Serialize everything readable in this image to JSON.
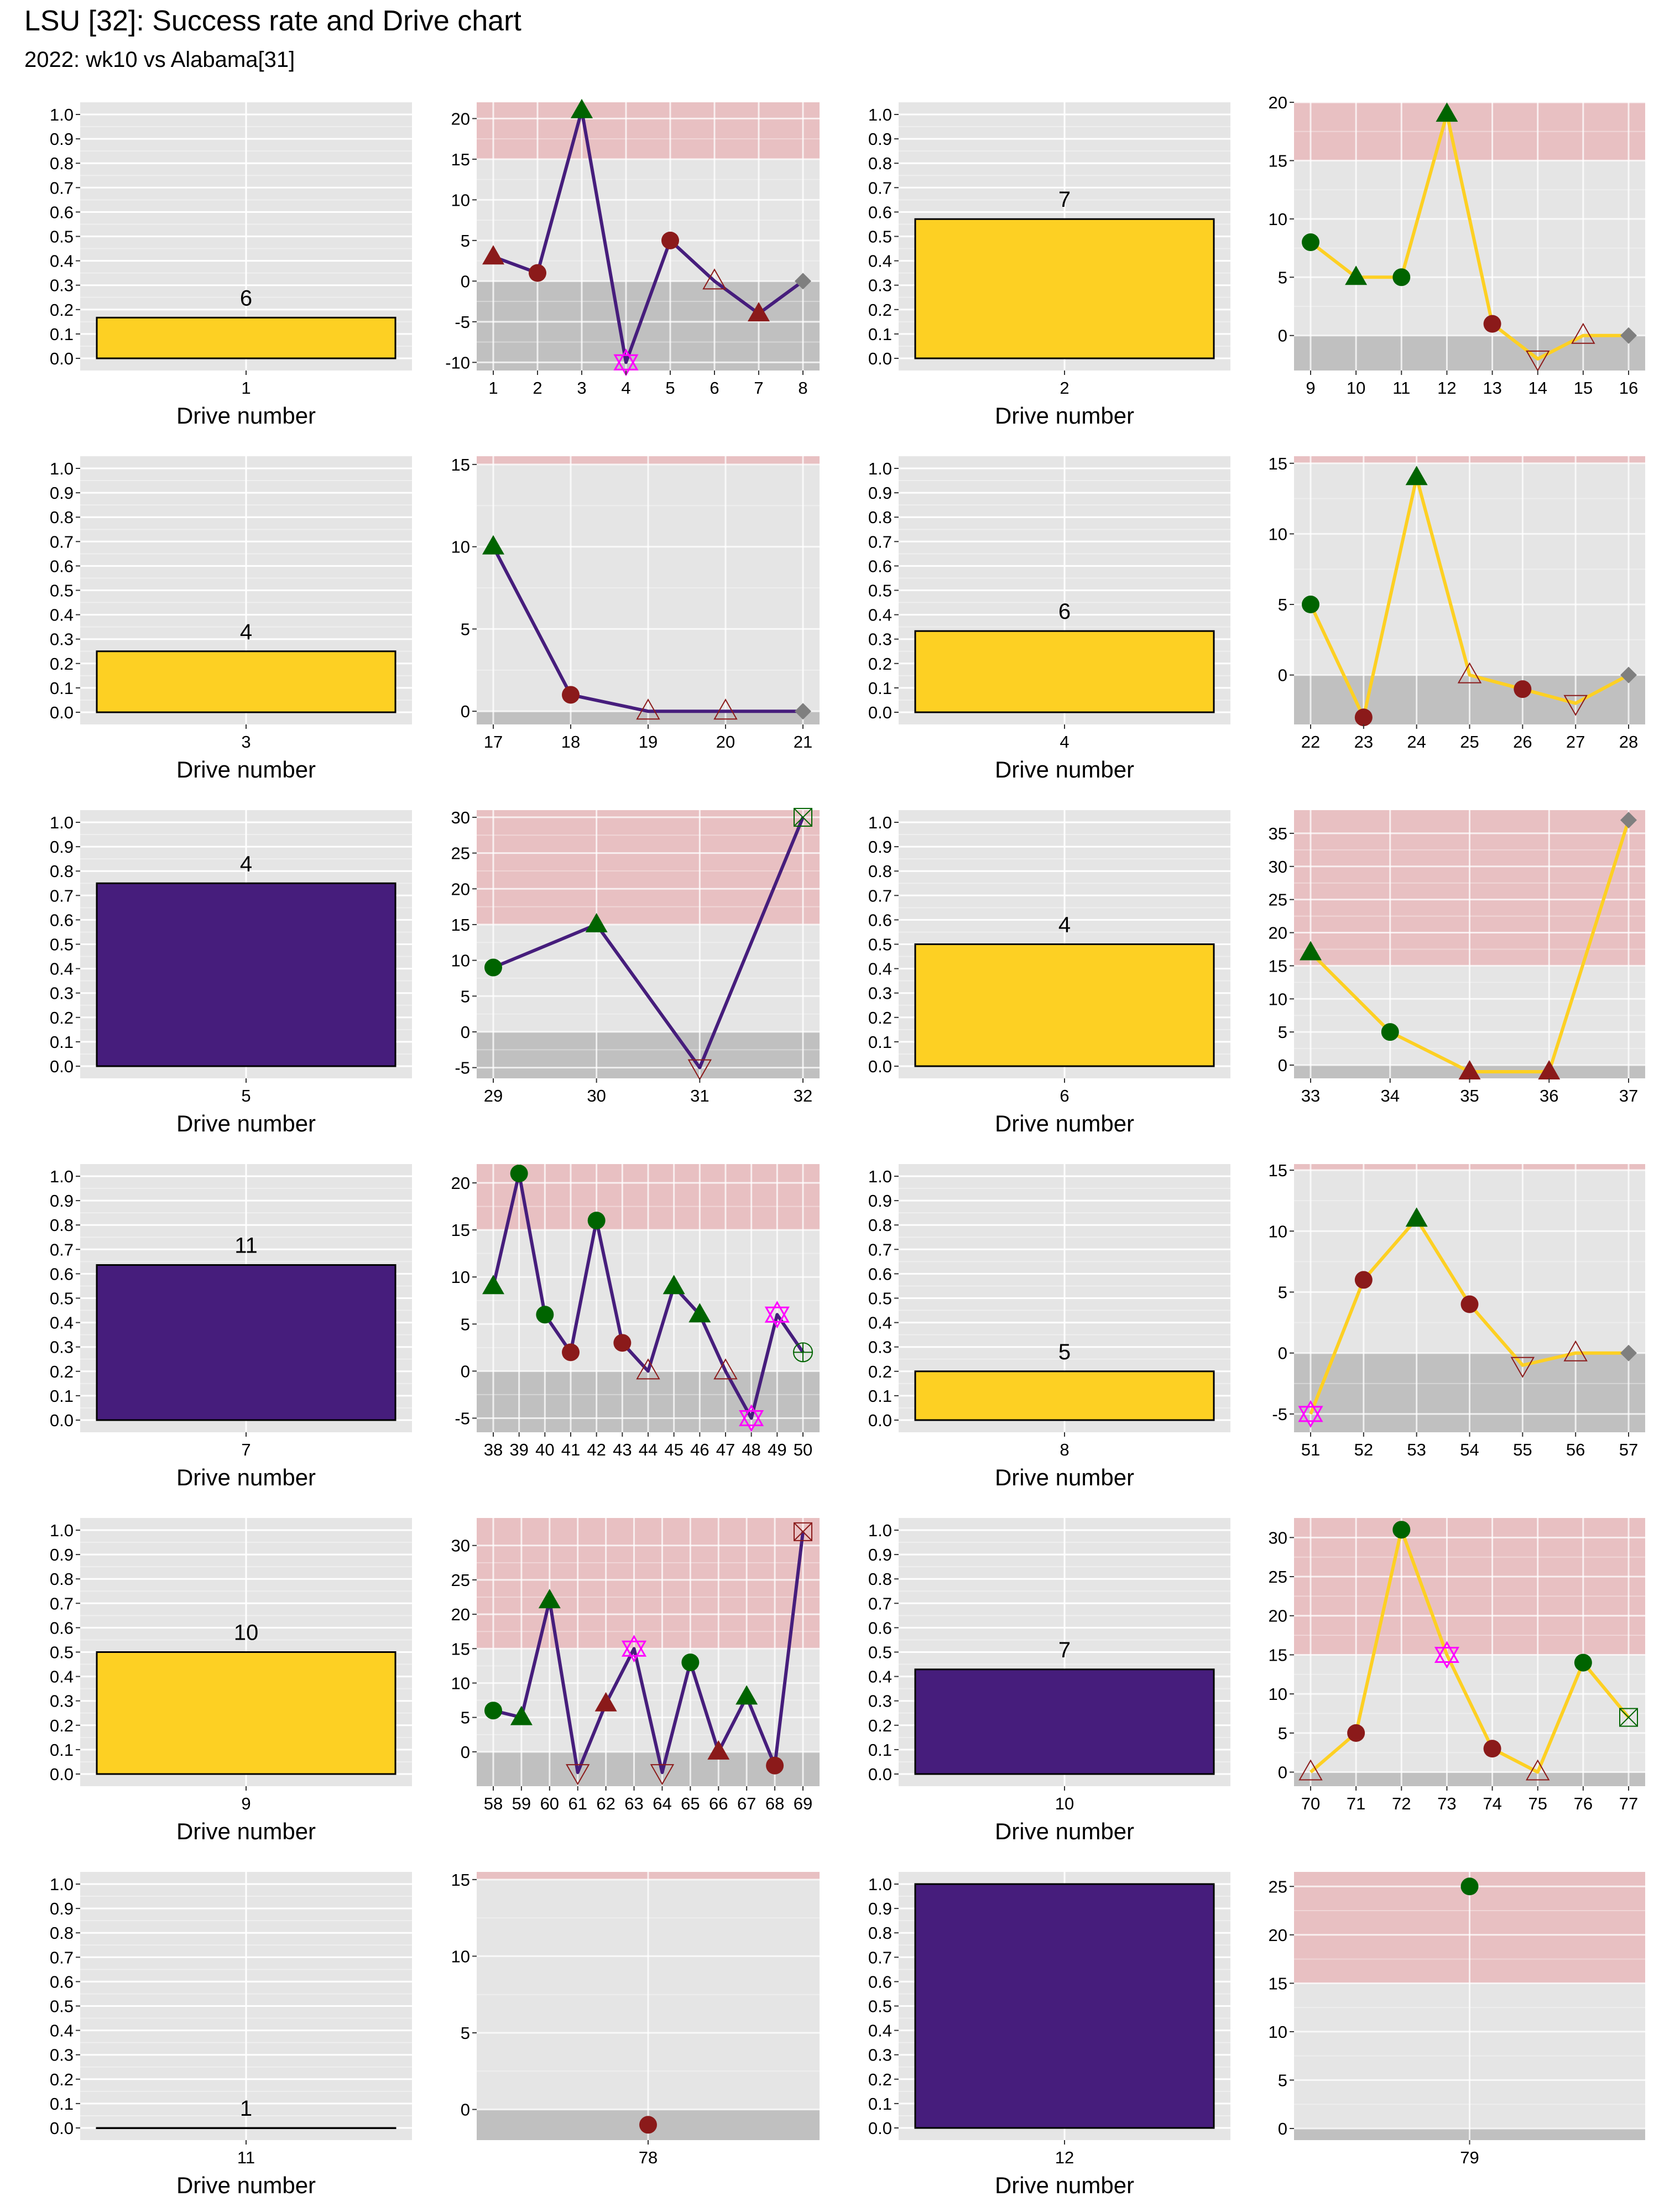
{
  "header": {
    "title": "LSU [32]: Success rate and Drive chart",
    "subtitle": "2022: wk10 vs Alabama[31]"
  },
  "colors": {
    "lsu_purple": "#461D7C",
    "lsu_gold": "#FDD023",
    "success_green": "#006400",
    "fail_red": "#8B1A1A",
    "panel_bg": "#E5E5E5",
    "explosive_band": "#E8C0C2",
    "negative_band": "#C0C0C0",
    "turnover_magenta": "#FF00FF",
    "end_gray": "#7F7F7F"
  },
  "chart_data": [
    {
      "type": "bar",
      "drives": [
        {
          "drive": 1,
          "plays": 6,
          "success_rate": 0.167,
          "color": "gold"
        },
        {
          "drive": 2,
          "plays": 7,
          "success_rate": 0.571,
          "color": "gold"
        },
        {
          "drive": 3,
          "plays": 4,
          "success_rate": 0.25,
          "color": "gold"
        },
        {
          "drive": 4,
          "plays": 6,
          "success_rate": 0.333,
          "color": "gold"
        },
        {
          "drive": 5,
          "plays": 4,
          "success_rate": 0.75,
          "color": "purple"
        },
        {
          "drive": 6,
          "plays": 4,
          "success_rate": 0.5,
          "color": "gold"
        },
        {
          "drive": 7,
          "plays": 11,
          "success_rate": 0.636,
          "color": "purple"
        },
        {
          "drive": 8,
          "plays": 5,
          "success_rate": 0.2,
          "color": "gold"
        },
        {
          "drive": 9,
          "plays": 10,
          "success_rate": 0.5,
          "color": "gold"
        },
        {
          "drive": 10,
          "plays": 7,
          "success_rate": 0.429,
          "color": "purple"
        },
        {
          "drive": 11,
          "plays": 1,
          "success_rate": 0.0,
          "color": "gold"
        },
        {
          "drive": 12,
          "plays": null,
          "success_rate": 1.0,
          "color": "purple"
        }
      ],
      "ylim": [
        0,
        1
      ],
      "yticks": [
        "0.0",
        "0.1",
        "0.2",
        "0.3",
        "0.4",
        "0.5",
        "0.6",
        "0.7",
        "0.8",
        "0.9",
        "1.0"
      ],
      "xlabel": "Drive number"
    },
    {
      "type": "line",
      "drives": [
        {
          "drive": 1,
          "line_color": "purple",
          "ylim": [
            -11,
            22
          ],
          "yticks": [
            "-10",
            "-5",
            "0",
            "5",
            "10",
            "15",
            "20"
          ],
          "points": [
            {
              "x": 1,
              "y": 3,
              "shape": "triangle",
              "color": "red"
            },
            {
              "x": 2,
              "y": 1,
              "shape": "circle",
              "color": "red"
            },
            {
              "x": 3,
              "y": 21,
              "shape": "triangle",
              "color": "green"
            },
            {
              "x": 4,
              "y": -10,
              "shape": "star",
              "color": "magenta"
            },
            {
              "x": 5,
              "y": 5,
              "shape": "circle",
              "color": "red"
            },
            {
              "x": 6,
              "y": 0,
              "shape": "triangle-open",
              "color": "red"
            },
            {
              "x": 7,
              "y": -4,
              "shape": "triangle",
              "color": "red"
            },
            {
              "x": 8,
              "y": 0,
              "shape": "diamond",
              "color": "gray"
            }
          ]
        },
        {
          "drive": 2,
          "line_color": "gold",
          "ylim": [
            -3,
            20
          ],
          "yticks": [
            "0",
            "5",
            "10",
            "15",
            "20"
          ],
          "points": [
            {
              "x": 9,
              "y": 8,
              "shape": "circle",
              "color": "green"
            },
            {
              "x": 10,
              "y": 5,
              "shape": "triangle",
              "color": "green"
            },
            {
              "x": 11,
              "y": 5,
              "shape": "circle",
              "color": "green"
            },
            {
              "x": 12,
              "y": 19,
              "shape": "triangle",
              "color": "green"
            },
            {
              "x": 13,
              "y": 1,
              "shape": "circle",
              "color": "red"
            },
            {
              "x": 14,
              "y": -2,
              "shape": "tri-down-open",
              "color": "red"
            },
            {
              "x": 15,
              "y": 0,
              "shape": "triangle-open",
              "color": "red"
            },
            {
              "x": 16,
              "y": 0,
              "shape": "diamond",
              "color": "gray"
            }
          ]
        },
        {
          "drive": 3,
          "line_color": "purple",
          "ylim": [
            -0.8,
            15.5
          ],
          "yticks": [
            "0",
            "5",
            "10",
            "15"
          ],
          "points": [
            {
              "x": 17,
              "y": 10,
              "shape": "triangle",
              "color": "green"
            },
            {
              "x": 18,
              "y": 1,
              "shape": "circle",
              "color": "red"
            },
            {
              "x": 19,
              "y": 0,
              "shape": "triangle-open",
              "color": "red"
            },
            {
              "x": 20,
              "y": 0,
              "shape": "triangle-open",
              "color": "red"
            },
            {
              "x": 21,
              "y": 0,
              "shape": "diamond",
              "color": "gray"
            }
          ]
        },
        {
          "drive": 4,
          "line_color": "gold",
          "ylim": [
            -3.5,
            15.5
          ],
          "yticks": [
            "0",
            "5",
            "10",
            "15"
          ],
          "points": [
            {
              "x": 22,
              "y": 5,
              "shape": "circle",
              "color": "green"
            },
            {
              "x": 23,
              "y": -3,
              "shape": "circle",
              "color": "red"
            },
            {
              "x": 24,
              "y": 14,
              "shape": "triangle",
              "color": "green"
            },
            {
              "x": 25,
              "y": 0,
              "shape": "triangle-open",
              "color": "red"
            },
            {
              "x": 26,
              "y": -1,
              "shape": "circle",
              "color": "red"
            },
            {
              "x": 27,
              "y": -2,
              "shape": "tri-down-open",
              "color": "red"
            },
            {
              "x": 28,
              "y": 0,
              "shape": "diamond",
              "color": "gray"
            }
          ]
        },
        {
          "drive": 5,
          "line_color": "purple",
          "ylim": [
            -6.5,
            31
          ],
          "yticks": [
            "-5",
            "0",
            "5",
            "10",
            "15",
            "20",
            "25",
            "30"
          ],
          "points": [
            {
              "x": 29,
              "y": 9,
              "shape": "circle",
              "color": "green"
            },
            {
              "x": 30,
              "y": 15,
              "shape": "triangle",
              "color": "green"
            },
            {
              "x": 31,
              "y": -5,
              "shape": "tri-down-open",
              "color": "red"
            },
            {
              "x": 32,
              "y": 30,
              "shape": "square-x",
              "color": "green"
            }
          ]
        },
        {
          "drive": 6,
          "line_color": "gold",
          "ylim": [
            -2,
            38.5
          ],
          "yticks": [
            "0",
            "5",
            "10",
            "15",
            "20",
            "25",
            "30",
            "35"
          ],
          "points": [
            {
              "x": 33,
              "y": 17,
              "shape": "triangle",
              "color": "green"
            },
            {
              "x": 34,
              "y": 5,
              "shape": "circle",
              "color": "green"
            },
            {
              "x": 35,
              "y": -1,
              "shape": "triangle",
              "color": "red"
            },
            {
              "x": 36,
              "y": -1,
              "shape": "triangle",
              "color": "red"
            },
            {
              "x": 37,
              "y": 37,
              "shape": "diamond",
              "color": "gray"
            }
          ]
        },
        {
          "drive": 7,
          "line_color": "purple",
          "ylim": [
            -6.5,
            22
          ],
          "yticks": [
            "-5",
            "0",
            "5",
            "10",
            "15",
            "20"
          ],
          "points": [
            {
              "x": 38,
              "y": 9,
              "shape": "triangle",
              "color": "green"
            },
            {
              "x": 39,
              "y": 21,
              "shape": "circle",
              "color": "green"
            },
            {
              "x": 40,
              "y": 6,
              "shape": "circle",
              "color": "green"
            },
            {
              "x": 41,
              "y": 2,
              "shape": "circle",
              "color": "red"
            },
            {
              "x": 42,
              "y": 16,
              "shape": "circle",
              "color": "green"
            },
            {
              "x": 43,
              "y": 3,
              "shape": "circle",
              "color": "red"
            },
            {
              "x": 44,
              "y": 0,
              "shape": "triangle-open",
              "color": "red"
            },
            {
              "x": 45,
              "y": 9,
              "shape": "triangle",
              "color": "green"
            },
            {
              "x": 46,
              "y": 6,
              "shape": "triangle",
              "color": "green"
            },
            {
              "x": 47,
              "y": 0,
              "shape": "triangle-open",
              "color": "red"
            },
            {
              "x": 48,
              "y": -5,
              "shape": "star",
              "color": "magenta"
            },
            {
              "x": 49,
              "y": 6,
              "shape": "star",
              "color": "magenta"
            },
            {
              "x": 50,
              "y": 2,
              "shape": "circle-plus",
              "color": "green"
            }
          ]
        },
        {
          "drive": 8,
          "line_color": "gold",
          "ylim": [
            -6.5,
            15.5
          ],
          "yticks": [
            "-5",
            "0",
            "5",
            "10",
            "15"
          ],
          "points": [
            {
              "x": 51,
              "y": -5,
              "shape": "star",
              "color": "magenta"
            },
            {
              "x": 52,
              "y": 6,
              "shape": "circle",
              "color": "red"
            },
            {
              "x": 53,
              "y": 11,
              "shape": "triangle",
              "color": "green"
            },
            {
              "x": 54,
              "y": 4,
              "shape": "circle",
              "color": "red"
            },
            {
              "x": 55,
              "y": -1,
              "shape": "tri-down-open",
              "color": "red"
            },
            {
              "x": 56,
              "y": 0,
              "shape": "triangle-open",
              "color": "red"
            },
            {
              "x": 57,
              "y": 0,
              "shape": "diamond",
              "color": "gray"
            }
          ]
        },
        {
          "drive": 9,
          "line_color": "purple",
          "ylim": [
            -5,
            34
          ],
          "yticks": [
            "0",
            "5",
            "10",
            "15",
            "20",
            "25",
            "30"
          ],
          "points": [
            {
              "x": 58,
              "y": 6,
              "shape": "circle",
              "color": "green"
            },
            {
              "x": 59,
              "y": 5,
              "shape": "triangle",
              "color": "green"
            },
            {
              "x": 60,
              "y": 22,
              "shape": "triangle",
              "color": "green"
            },
            {
              "x": 61,
              "y": -3,
              "shape": "tri-down-open",
              "color": "red"
            },
            {
              "x": 62,
              "y": 7,
              "shape": "triangle",
              "color": "red"
            },
            {
              "x": 63,
              "y": 15,
              "shape": "star",
              "color": "magenta"
            },
            {
              "x": 64,
              "y": -3,
              "shape": "tri-down-open",
              "color": "red"
            },
            {
              "x": 65,
              "y": 13,
              "shape": "circle",
              "color": "green"
            },
            {
              "x": 66,
              "y": 0,
              "shape": "triangle",
              "color": "red"
            },
            {
              "x": 67,
              "y": 8,
              "shape": "triangle",
              "color": "green"
            },
            {
              "x": 68,
              "y": -2,
              "shape": "circle",
              "color": "red"
            },
            {
              "x": 69,
              "y": 32,
              "shape": "square-x",
              "color": "red"
            }
          ]
        },
        {
          "drive": 10,
          "line_color": "gold",
          "ylim": [
            -1.8,
            32.5
          ],
          "yticks": [
            "0",
            "5",
            "10",
            "15",
            "20",
            "25",
            "30"
          ],
          "points": [
            {
              "x": 70,
              "y": 0,
              "shape": "triangle-open",
              "color": "red"
            },
            {
              "x": 71,
              "y": 5,
              "shape": "circle",
              "color": "red"
            },
            {
              "x": 72,
              "y": 31,
              "shape": "circle",
              "color": "green"
            },
            {
              "x": 73,
              "y": 15,
              "shape": "star",
              "color": "magenta"
            },
            {
              "x": 74,
              "y": 3,
              "shape": "circle",
              "color": "red"
            },
            {
              "x": 75,
              "y": 0,
              "shape": "triangle-open",
              "color": "red"
            },
            {
              "x": 76,
              "y": 14,
              "shape": "circle",
              "color": "green"
            },
            {
              "x": 77,
              "y": 7,
              "shape": "square-x",
              "color": "green"
            }
          ]
        },
        {
          "drive": 11,
          "line_color": "purple",
          "ylim": [
            -2,
            15.5
          ],
          "yticks": [
            "0",
            "5",
            "10",
            "15"
          ],
          "points": [
            {
              "x": 78,
              "y": -1,
              "shape": "circle",
              "color": "red"
            }
          ]
        },
        {
          "drive": 12,
          "line_color": "gold",
          "ylim": [
            -1.2,
            26.5
          ],
          "yticks": [
            "0",
            "5",
            "10",
            "15",
            "20",
            "25"
          ],
          "points": [
            {
              "x": 79,
              "y": 25,
              "shape": "circle",
              "color": "green"
            }
          ]
        }
      ]
    }
  ]
}
